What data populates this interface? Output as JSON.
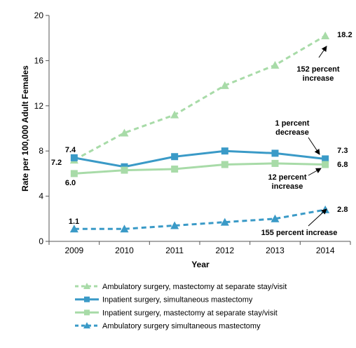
{
  "chart_data": {
    "type": "line",
    "xlabel": "Year",
    "ylabel": "Rate per 100,000  Adult Females",
    "categories": [
      "2009",
      "2010",
      "2011",
      "2012",
      "2013",
      "2014"
    ],
    "ylim": [
      0,
      20
    ],
    "yticks": [
      "0",
      "4",
      "8",
      "12",
      "16",
      "20"
    ],
    "grid": false,
    "legend_position": "bottom",
    "series": [
      {
        "name": "Ambulatory surgery, mastectomy at separate stay/visit",
        "values": [
          7.2,
          9.6,
          11.2,
          13.8,
          15.6,
          18.2
        ],
        "color": "#a8dba8",
        "dashed": true,
        "marker": "triangle",
        "labels": [
          "7.2",
          "18.2"
        ]
      },
      {
        "name": "Inpatient surgery, simultaneous mastectomy",
        "values": [
          7.4,
          6.6,
          7.5,
          8.0,
          7.8,
          7.3
        ],
        "color": "#3a9ac7",
        "dashed": false,
        "marker": "square",
        "labels": [
          "7.4",
          "7.3"
        ]
      },
      {
        "name": "Inpatient surgery, mastectomy at separate stay/visit",
        "values": [
          6.0,
          6.3,
          6.4,
          6.8,
          6.9,
          6.8
        ],
        "color": "#a8dba8",
        "dashed": false,
        "marker": "square",
        "labels": [
          "6.0",
          "6.8"
        ]
      },
      {
        "name": "Ambulatory surgery simultaneous mastectomy",
        "values": [
          1.1,
          1.1,
          1.4,
          1.7,
          2.0,
          2.8
        ],
        "color": "#3a9ac7",
        "dashed": true,
        "marker": "triangle",
        "labels": [
          "1.1",
          "2.8"
        ]
      }
    ],
    "annotations": [
      {
        "lines": [
          "152 percent",
          "increase"
        ]
      },
      {
        "lines": [
          "1 percent",
          "decrease"
        ]
      },
      {
        "lines": [
          "12 percent",
          "increase"
        ]
      },
      {
        "lines": [
          "155 percent increase"
        ]
      }
    ]
  }
}
